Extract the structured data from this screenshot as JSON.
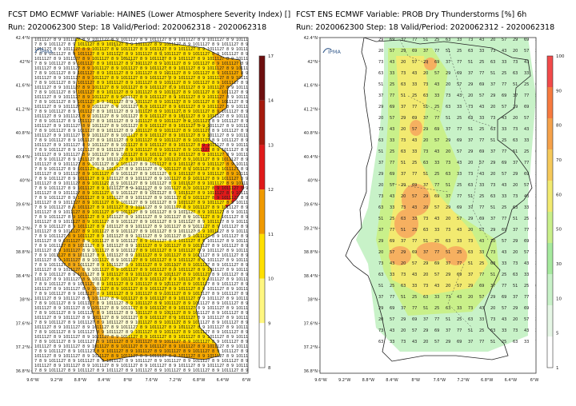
{
  "left": {
    "title": "FCST DMO ECMWF Variable: HAINES (Lower Atmosphere Severity Index) []",
    "subtitle": "Run: 2020062300 Step: 18 Valid/Period: 2020062318 - 2020062318",
    "logo_text": "IPMA",
    "lat_labels": [
      "42.4°N",
      "42°N",
      "41.6°N",
      "41.2°N",
      "40.8°N",
      "40.4°N",
      "40°N",
      "39.6°N",
      "39.2°N",
      "38.8°N",
      "38.4°N",
      "38°N",
      "37.6°N",
      "37.2°N",
      "36.8°N"
    ],
    "lon_labels": [
      "9.6°W",
      "9.2°W",
      "8.8°W",
      "8.4°W",
      "8°W",
      "7.6°W",
      "7.2°W",
      "6.8°W",
      "6.4°W",
      "6°W"
    ],
    "colorbar": {
      "ticks": [
        "17",
        "14",
        "13",
        "12",
        "11",
        "10",
        "9",
        "8"
      ],
      "colors": [
        "#6e0f0f",
        "#a51a0d",
        "#e01a1a",
        "#f09a00",
        "#ffe000",
        "#fff780",
        "#ffffff"
      ]
    }
  },
  "right": {
    "title": "FCST ENS ECMWF Variable: PROB Dry Thunderstorms [%] 6h",
    "subtitle": "Run: 2020062300 Step: 18 Valid/Period: 2020062312 - 2020062318",
    "logo_text": "IPMA",
    "lat_labels": [
      "42.4°N",
      "42°N",
      "41.6°N",
      "41.2°N",
      "40.8°N",
      "40.4°N",
      "40°N",
      "39.6°N",
      "39.2°N",
      "38.8°N",
      "38.4°N",
      "38°N",
      "37.6°N",
      "37.2°N",
      "36.8°N"
    ],
    "lon_labels": [
      "9.6°W",
      "9.2°W",
      "8.8°W",
      "8.4°W",
      "8°W",
      "7.6°W",
      "7.2°W",
      "6.8°W",
      "6.4°W",
      "6°W"
    ],
    "colorbar": {
      "ticks": [
        "100",
        "90",
        "80",
        "70",
        "60",
        "50",
        "30",
        "10",
        "5",
        "1"
      ],
      "colors": [
        "#f24a4a",
        "#f77a3f",
        "#f6a24a",
        "#f6c95a",
        "#f2ea70",
        "#c9f08a",
        "#a6ea9e",
        "#c8f2c8",
        "#e6f7e6",
        "#ffffff"
      ]
    }
  },
  "map_data": {
    "haines_levels": [
      "8",
      "9",
      "10",
      "11",
      "12",
      "13",
      "14",
      "17"
    ],
    "grid_values_sample": [
      "7",
      "8",
      "9",
      "10",
      "11",
      "12"
    ],
    "prob_values_sample": [
      "20",
      "25",
      "29",
      "33",
      "37",
      "43",
      "51",
      "57",
      "63",
      "69",
      "73",
      "77"
    ]
  }
}
